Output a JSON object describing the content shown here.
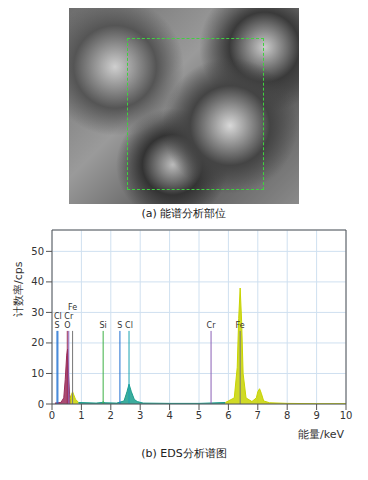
{
  "image": {
    "caption": "(a) 能谱分析部位"
  },
  "chart_data": {
    "type": "area",
    "title": "(b) EDS分析谱图",
    "x_label": "能量/keV",
    "y_label": "计数率/cps",
    "xlim": [
      0,
      10
    ],
    "xticks": [
      0,
      1,
      2,
      3,
      4,
      5,
      6,
      7,
      8,
      9,
      10
    ],
    "ylim": [
      0,
      57
    ],
    "yticks": [
      0,
      10,
      20,
      30,
      40,
      50
    ],
    "grid": true,
    "series": [
      {
        "color": "#9b2d5a",
        "x": [
          0.1,
          0.3,
          0.4,
          0.45,
          0.5,
          0.53,
          0.56,
          0.6,
          0.65
        ],
        "values": [
          0.3,
          0.5,
          2,
          8,
          16,
          18,
          10,
          3,
          1.5
        ]
      },
      {
        "color": "#c8d400",
        "x": [
          0.62,
          0.66,
          0.7,
          0.74,
          0.8,
          0.9
        ],
        "values": [
          1.5,
          3,
          4,
          3,
          1.5,
          0.6
        ]
      },
      {
        "color": "#1a9e8c",
        "x": [
          0.9,
          1.5,
          1.7,
          1.74,
          1.8,
          2.2,
          2.45,
          2.55,
          2.62,
          2.7,
          2.8,
          2.9,
          3.1,
          4,
          5,
          5.9
        ],
        "values": [
          0.5,
          0.3,
          0.5,
          0.7,
          0.4,
          0.3,
          1,
          4,
          6.5,
          4,
          1.5,
          0.8,
          0.3,
          0.2,
          0.2,
          0.5
        ]
      },
      {
        "color": "#c8d400",
        "x": [
          5.9,
          6.2,
          6.3,
          6.35,
          6.4,
          6.45,
          6.5,
          6.6,
          6.8,
          6.95,
          7.0,
          7.06,
          7.12,
          7.2,
          7.4,
          8,
          9,
          10
        ],
        "values": [
          0.5,
          2,
          12,
          28,
          38,
          27,
          10,
          2,
          0.8,
          2,
          4,
          5,
          3.5,
          1,
          0.4,
          0.2,
          0.1,
          0.1
        ]
      }
    ],
    "element_lines": [
      {
        "label": "S",
        "value": 0.17,
        "color": "#1f6fd1"
      },
      {
        "label": "O",
        "value": 0.52,
        "color": "#9b2d5a"
      },
      {
        "label": "Cl",
        "value": 0.2,
        "color": "#1f6fd1"
      },
      {
        "label": "Cr",
        "value": 0.57,
        "color": "#8a5fb5"
      },
      {
        "label": "Fe",
        "value": 0.7,
        "color": "#777777"
      },
      {
        "label": "Si",
        "value": 1.74,
        "color": "#3cb043"
      },
      {
        "label": "S",
        "value": 2.31,
        "color": "#1f6fd1"
      },
      {
        "label": "Cl",
        "value": 2.62,
        "color": "#1aa3b0"
      },
      {
        "label": "Cr",
        "value": 5.41,
        "color": "#8a5fb5"
      },
      {
        "label": "Fe",
        "value": 6.4,
        "color": "#777777"
      }
    ]
  }
}
